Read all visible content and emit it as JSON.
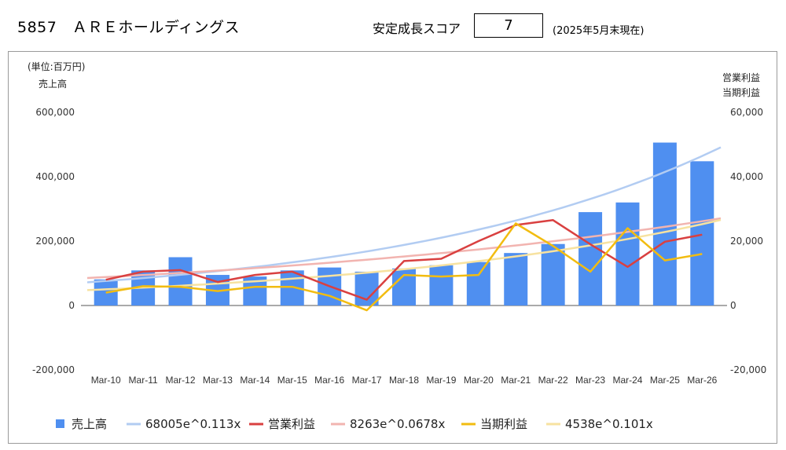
{
  "header": {
    "title": "5857　ＡＲＥホールディングス",
    "score_label": "安定成長スコア",
    "score_value": "7",
    "as_of": "(2025年5月末現在)"
  },
  "colors": {
    "sales": "#4f8ff0",
    "sales_trend": "#b2ccf2",
    "op": "#d94040",
    "op_trend": "#f2b4b0",
    "net": "#f2bc10",
    "net_trend": "#f7e2a0"
  },
  "chart_data": {
    "type": "bar",
    "unit_label": "(単位:百万円)",
    "left_axis_title": "売上高",
    "right_axis_title_1": "営業利益",
    "right_axis_title_2": "当期利益",
    "categories": [
      "Mar-10",
      "Mar-11",
      "Mar-12",
      "Mar-13",
      "Mar-14",
      "Mar-15",
      "Mar-16",
      "Mar-17",
      "Mar-18",
      "Mar-19",
      "Mar-20",
      "Mar-21",
      "Mar-22",
      "Mar-23",
      "Mar-24",
      "Mar-25",
      "Mar-26"
    ],
    "left_ylim": [
      -200000,
      600000
    ],
    "right_ylim": [
      -20000,
      60000
    ],
    "left_ticks": [
      "600,000",
      "400,000",
      "200,000",
      "0",
      "-200,000"
    ],
    "right_ticks": [
      "60,000",
      "40,000",
      "20,000",
      "0",
      "-20,000"
    ],
    "series": [
      {
        "name": "売上高",
        "type": "bar",
        "axis": "left",
        "values": [
          81000,
          109000,
          150000,
          95000,
          90000,
          109000,
          118000,
          105000,
          115000,
          125000,
          135000,
          163000,
          191000,
          290000,
          320000,
          506000,
          448000
        ]
      },
      {
        "name": "営業利益",
        "type": "line",
        "axis": "right",
        "values": [
          8000,
          10500,
          11000,
          7300,
          9500,
          10500,
          6000,
          1800,
          13800,
          14500,
          20000,
          25000,
          26500,
          19000,
          12000,
          19800,
          22000
        ]
      },
      {
        "name": "当期利益",
        "type": "line",
        "axis": "right",
        "values": [
          4000,
          6000,
          5800,
          4500,
          5800,
          5800,
          3000,
          -1500,
          9500,
          9000,
          9500,
          25500,
          18500,
          10500,
          24000,
          14000,
          16000
        ]
      }
    ],
    "trendlines": [
      {
        "name": "68005e^0.113x",
        "axis": "left",
        "a": 68005,
        "b": 0.113
      },
      {
        "name": "8263e^0.0678x",
        "axis": "right",
        "a": 8263,
        "b": 0.0678
      },
      {
        "name": "4538e^0.101x",
        "axis": "right",
        "a": 4538,
        "b": 0.101
      }
    ],
    "legend_position": "bottom",
    "grid": false
  }
}
